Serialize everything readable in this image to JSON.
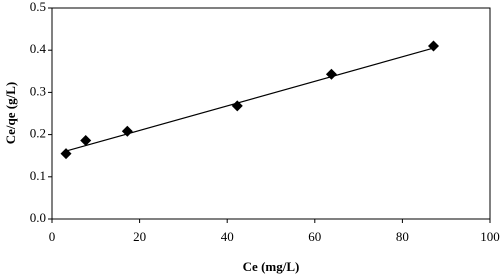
{
  "chart_data": {
    "type": "scatter",
    "x_label": "Ce (mg/L)",
    "y_label": "Ce/qe (g/L)",
    "x": [
      3.2,
      7.7,
      17.2,
      42.3,
      63.8,
      87.1
    ],
    "series": [
      {
        "name": "data",
        "color": "#000000",
        "values": [
          0.155,
          0.186,
          0.208,
          0.268,
          0.343,
          0.41
        ]
      }
    ],
    "trendline": {
      "x": [
        3.2,
        87.1
      ],
      "y": [
        0.161,
        0.405
      ],
      "color": "#000000"
    },
    "xlim": [
      0,
      100
    ],
    "xticks": [
      0,
      20,
      40,
      60,
      80,
      100
    ],
    "ylim": [
      0,
      0.5
    ],
    "yticks": [
      {
        "value": 0,
        "label": "0.0"
      },
      0.1,
      0.2,
      0.3,
      0.4,
      0.5
    ],
    "grid": false
  }
}
